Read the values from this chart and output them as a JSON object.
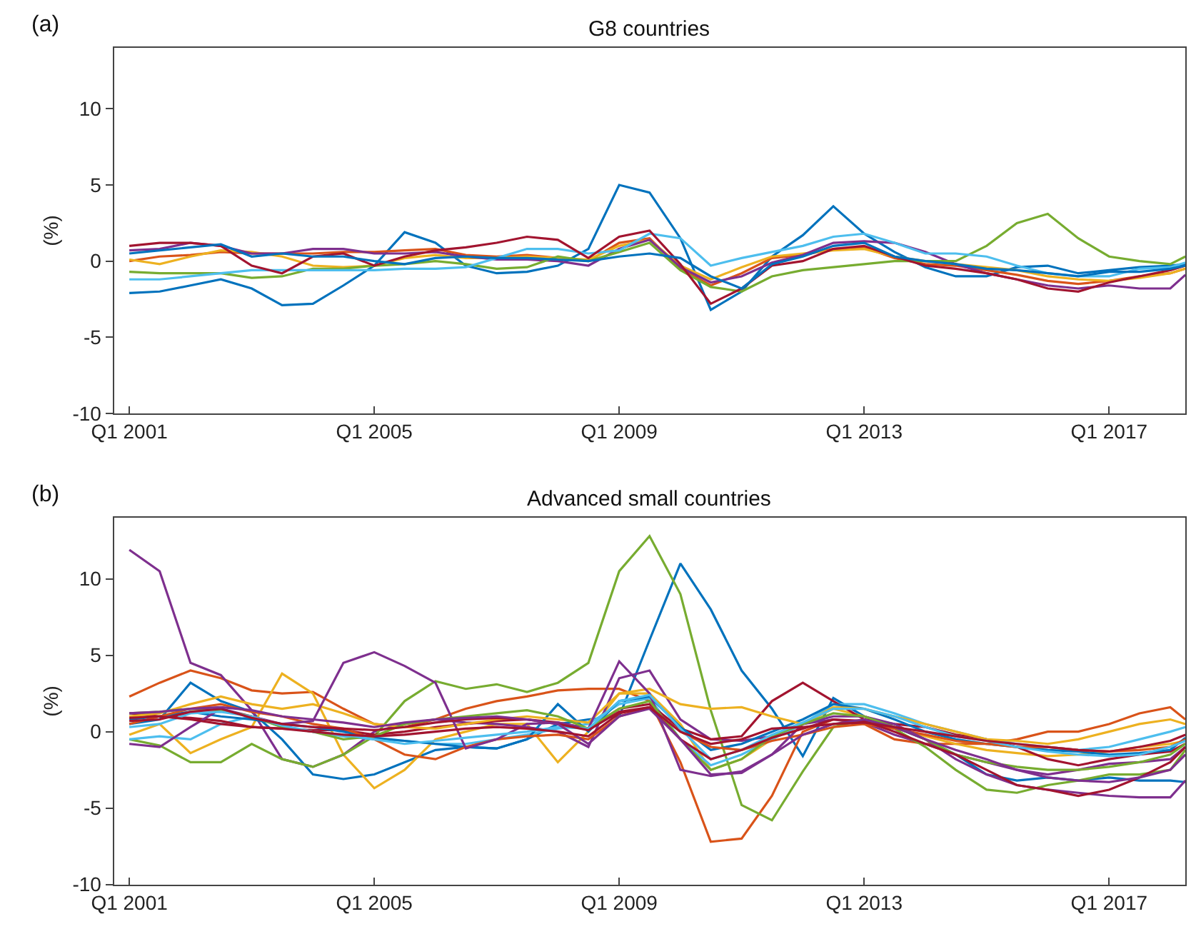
{
  "chart_data": [
    {
      "type": "line",
      "title": "G8 countries",
      "ylabel": "(%)",
      "annotations": [
        "(a)"
      ],
      "marker": "none",
      "line_style": "solid",
      "x": [
        "2001-01",
        "2001-07",
        "2002-01",
        "2002-07",
        "2003-01",
        "2003-07",
        "2004-01",
        "2004-07",
        "2005-01",
        "2005-07",
        "2006-01",
        "2006-07",
        "2007-01",
        "2007-07",
        "2008-01",
        "2008-07",
        "2009-01",
        "2009-07",
        "2010-01",
        "2010-07",
        "2011-01",
        "2011-07",
        "2012-01",
        "2012-07",
        "2013-01",
        "2013-07",
        "2014-01",
        "2014-07",
        "2015-01",
        "2015-07",
        "2016-01",
        "2016-07",
        "2017-01",
        "2017-07",
        "2018-01",
        "2018-04"
      ],
      "xlim": [
        "2000-10",
        "2018-04"
      ],
      "xticks": [
        {
          "value": "2001-01",
          "label": "Q1 2001"
        },
        {
          "value": "2005-01",
          "label": "Q1 2005"
        },
        {
          "value": "2009-01",
          "label": "Q1 2009"
        },
        {
          "value": "2013-01",
          "label": "Q1 2013"
        },
        {
          "value": "2017-01",
          "label": "Q1 2017"
        }
      ],
      "ylim": [
        -10,
        14
      ],
      "yticks": [
        -10,
        -5,
        0,
        5,
        10
      ],
      "series": [
        {
          "color": "#0072bd",
          "values": [
            -2.1,
            -2.0,
            -1.6,
            -1.2,
            -1.8,
            -2.9,
            -2.8,
            -1.6,
            -0.3,
            1.9,
            1.2,
            -0.3,
            -0.8,
            -0.7,
            -0.3,
            0.8,
            5.0,
            4.5,
            1.5,
            -3.2,
            -2.0,
            0.3,
            1.7,
            3.6,
            1.8,
            0.6,
            -0.4,
            -1.0,
            -1.0,
            -0.4,
            -0.3,
            -0.8,
            -0.6,
            -0.4,
            -0.3,
            -0.2
          ]
        },
        {
          "color": "#d95319",
          "values": [
            0.0,
            0.3,
            0.4,
            0.6,
            0.5,
            0.5,
            0.5,
            0.6,
            0.6,
            0.7,
            0.8,
            0.4,
            0.3,
            0.4,
            0.2,
            0.0,
            1.2,
            1.5,
            -0.5,
            -1.6,
            -0.8,
            0.2,
            0.4,
            0.8,
            0.9,
            0.2,
            -0.2,
            -0.3,
            -0.6,
            -0.9,
            -1.3,
            -1.5,
            -1.3,
            -1.0,
            -0.8,
            -0.5
          ]
        },
        {
          "color": "#edb120",
          "values": [
            0.1,
            -0.2,
            0.3,
            0.7,
            0.6,
            0.3,
            -0.3,
            -0.4,
            -0.3,
            0.2,
            0.4,
            0.2,
            0.2,
            0.3,
            0.2,
            0.1,
            1.0,
            1.4,
            -0.3,
            -1.2,
            -0.4,
            0.3,
            0.5,
            0.7,
            0.8,
            0.3,
            0.0,
            -0.2,
            -0.4,
            -0.6,
            -1.0,
            -1.2,
            -1.3,
            -1.1,
            -0.8,
            -0.5
          ]
        },
        {
          "color": "#7e2f8e",
          "values": [
            0.7,
            0.8,
            1.2,
            1.0,
            0.5,
            0.5,
            0.8,
            0.8,
            0.5,
            0.5,
            0.6,
            0.3,
            0.1,
            0.1,
            0.0,
            -0.3,
            0.8,
            1.4,
            -0.4,
            -1.4,
            -1.0,
            -0.1,
            0.4,
            1.2,
            1.3,
            1.2,
            0.6,
            -0.2,
            -0.8,
            -1.2,
            -1.6,
            -1.8,
            -1.6,
            -1.8,
            -1.8,
            -0.9
          ]
        },
        {
          "color": "#77ac30",
          "values": [
            -0.7,
            -0.8,
            -0.8,
            -0.8,
            -1.1,
            -1.0,
            -0.5,
            -0.5,
            -0.3,
            -0.2,
            0.0,
            -0.2,
            -0.5,
            -0.4,
            0.3,
            0.0,
            0.6,
            1.2,
            -0.6,
            -1.7,
            -2.0,
            -1.0,
            -0.6,
            -0.4,
            -0.2,
            0.0,
            0.0,
            0.0,
            1.0,
            2.5,
            3.1,
            1.5,
            0.3,
            0.0,
            -0.2,
            0.3
          ]
        },
        {
          "color": "#4dbeee",
          "values": [
            -1.2,
            -1.2,
            -1.0,
            -0.8,
            -0.6,
            -0.6,
            -0.6,
            -0.6,
            -0.6,
            -0.5,
            -0.5,
            -0.4,
            0.2,
            0.8,
            0.8,
            0.5,
            0.7,
            1.8,
            1.5,
            -0.3,
            0.2,
            0.6,
            1.0,
            1.6,
            1.8,
            1.2,
            0.5,
            0.5,
            0.3,
            -0.3,
            -0.8,
            -1.0,
            -1.0,
            -0.5,
            -0.4,
            -0.1
          ]
        },
        {
          "color": "#a2142f",
          "values": [
            1.0,
            1.2,
            1.2,
            1.0,
            -0.3,
            -0.8,
            0.3,
            0.5,
            -0.3,
            0.3,
            0.7,
            0.9,
            1.2,
            1.6,
            1.4,
            0.2,
            1.6,
            2.0,
            -0.2,
            -2.8,
            -1.8,
            -0.3,
            0.0,
            0.8,
            1.0,
            0.3,
            -0.3,
            -0.5,
            -0.8,
            -1.2,
            -1.8,
            -2.0,
            -1.4,
            -1.0,
            -0.6,
            -0.3
          ]
        },
        {
          "color": "#0072bd",
          "values": [
            0.5,
            0.7,
            0.9,
            1.1,
            0.3,
            0.5,
            0.3,
            0.3,
            0.0,
            -0.2,
            0.2,
            0.3,
            0.2,
            0.2,
            0.1,
            0.0,
            0.3,
            0.5,
            0.2,
            -1.0,
            -1.8,
            -0.2,
            0.3,
            1.0,
            1.2,
            0.3,
            0.0,
            -0.2,
            -0.5,
            -0.6,
            -0.8,
            -1.0,
            -0.7,
            -0.7,
            -0.5,
            -0.3
          ]
        }
      ]
    },
    {
      "type": "line",
      "title": "Advanced small countries",
      "ylabel": "(%)",
      "annotations": [
        "(b)"
      ],
      "marker": "none",
      "line_style": "solid",
      "x": [
        "2001-01",
        "2001-07",
        "2002-01",
        "2002-07",
        "2003-01",
        "2003-07",
        "2004-01",
        "2004-07",
        "2005-01",
        "2005-07",
        "2006-01",
        "2006-07",
        "2007-01",
        "2007-07",
        "2008-01",
        "2008-07",
        "2009-01",
        "2009-07",
        "2010-01",
        "2010-07",
        "2011-01",
        "2011-07",
        "2012-01",
        "2012-07",
        "2013-01",
        "2013-07",
        "2014-01",
        "2014-07",
        "2015-01",
        "2015-07",
        "2016-01",
        "2016-07",
        "2017-01",
        "2017-07",
        "2018-01",
        "2018-04"
      ],
      "xlim": [
        "2000-10",
        "2018-04"
      ],
      "xticks": [
        {
          "value": "2001-01",
          "label": "Q1 2001"
        },
        {
          "value": "2005-01",
          "label": "Q1 2005"
        },
        {
          "value": "2009-01",
          "label": "Q1 2009"
        },
        {
          "value": "2013-01",
          "label": "Q1 2013"
        },
        {
          "value": "2017-01",
          "label": "Q1 2017"
        }
      ],
      "ylim": [
        -10,
        14
      ],
      "yticks": [
        -10,
        -5,
        0,
        5,
        10
      ],
      "series": [
        {
          "color": "#0072bd",
          "values": [
            0.5,
            0.8,
            3.2,
            2.0,
            1.3,
            -0.5,
            -2.8,
            -3.1,
            -2.8,
            -2.0,
            -1.2,
            -1.0,
            -1.1,
            -0.5,
            0.5,
            0.8,
            1.0,
            6.0,
            11.0,
            8.0,
            4.0,
            1.5,
            -1.6,
            2.2,
            1.0,
            0.3,
            -0.5,
            -1.5,
            -2.8,
            -3.2,
            -3.0,
            -3.2,
            -3.0,
            -3.2,
            -3.2,
            -3.3
          ]
        },
        {
          "color": "#d95319",
          "values": [
            2.3,
            3.2,
            4.0,
            3.5,
            2.7,
            2.5,
            2.6,
            1.5,
            0.5,
            0.3,
            0.8,
            1.5,
            2.0,
            2.3,
            2.7,
            2.8,
            2.8,
            2.0,
            -2.0,
            -7.2,
            -7.0,
            -4.2,
            0.0,
            0.8,
            0.5,
            -0.5,
            -0.8,
            -0.8,
            -0.8,
            -0.5,
            0.0,
            0.0,
            0.5,
            1.2,
            1.6,
            0.8
          ]
        },
        {
          "color": "#edb120",
          "values": [
            -0.2,
            0.5,
            -1.4,
            -0.5,
            0.3,
            3.8,
            2.5,
            -1.5,
            -3.7,
            -2.5,
            -0.5,
            0.0,
            0.5,
            0.5,
            -2.0,
            0.0,
            2.5,
            2.5,
            0.5,
            -2.5,
            -1.8,
            -0.5,
            0.5,
            1.5,
            1.0,
            0.3,
            -0.3,
            -0.8,
            -1.2,
            -1.4,
            -1.6,
            -1.5,
            -1.3,
            -1.0,
            -0.8,
            -0.6
          ]
        },
        {
          "color": "#7e2f8e",
          "values": [
            11.9,
            10.5,
            4.5,
            3.7,
            1.4,
            -1.8,
            -2.3,
            -1.5,
            0.0,
            0.5,
            0.8,
            0.6,
            0.5,
            0.3,
            0.0,
            -1.0,
            3.5,
            4.0,
            0.8,
            -0.5,
            -0.6,
            -0.3,
            0.5,
            0.8,
            0.6,
            -0.2,
            -0.8,
            -1.5,
            -2.0,
            -2.5,
            -2.8,
            -2.5,
            -2.1,
            -2.0,
            -1.8,
            -1.0
          ]
        },
        {
          "color": "#77ac30",
          "values": [
            -0.5,
            -0.9,
            -2.0,
            -2.0,
            -0.8,
            -1.8,
            -2.3,
            -1.5,
            -0.3,
            2.0,
            3.3,
            2.8,
            3.1,
            2.6,
            3.2,
            4.5,
            10.5,
            12.8,
            9.0,
            1.4,
            -4.8,
            -5.8,
            -2.6,
            0.3,
            0.8,
            0.2,
            -1.0,
            -2.5,
            -3.8,
            -4.0,
            -3.5,
            -3.2,
            -2.8,
            -2.8,
            -2.5,
            -1.2
          ]
        },
        {
          "color": "#4dbeee",
          "values": [
            -0.5,
            -0.3,
            -0.5,
            0.5,
            1.0,
            0.3,
            0.0,
            -0.3,
            -0.5,
            -0.6,
            -0.8,
            -0.8,
            -0.5,
            -0.2,
            0.2,
            0.5,
            1.8,
            2.2,
            -0.5,
            -2.2,
            -1.5,
            -0.5,
            0.5,
            1.8,
            1.8,
            1.2,
            0.5,
            0.0,
            -0.5,
            -0.8,
            -1.0,
            -1.2,
            -1.0,
            -0.5,
            0.0,
            0.3
          ]
        },
        {
          "color": "#a2142f",
          "values": [
            1.2,
            1.0,
            0.9,
            0.7,
            0.3,
            0.2,
            0.1,
            0.1,
            -0.2,
            0.0,
            0.3,
            0.5,
            0.7,
            0.8,
            0.6,
            0.2,
            1.5,
            1.8,
            0.2,
            -0.5,
            -0.3,
            2.0,
            3.2,
            2.0,
            0.8,
            0.5,
            0.3,
            -0.2,
            -0.5,
            -1.0,
            -1.8,
            -2.2,
            -1.8,
            -1.5,
            -1.3,
            -0.8
          ]
        },
        {
          "color": "#0072bd",
          "values": [
            0.8,
            1.0,
            1.3,
            1.0,
            0.8,
            0.5,
            0.3,
            0.0,
            -0.4,
            -0.6,
            -0.8,
            -1.0,
            -1.1,
            -0.5,
            1.8,
            0.0,
            2.0,
            2.3,
            0.3,
            -1.2,
            -0.8,
            0.0,
            0.8,
            1.8,
            1.5,
            0.8,
            0.0,
            -0.5,
            -0.8,
            -1.0,
            -1.2,
            -1.3,
            -1.5,
            -1.4,
            -1.2,
            -0.4
          ]
        },
        {
          "color": "#d95319",
          "values": [
            0.5,
            1.0,
            1.5,
            1.8,
            1.3,
            1.0,
            0.5,
            0.2,
            -0.5,
            -1.5,
            -1.8,
            -1.0,
            -0.5,
            -0.3,
            -0.2,
            -0.5,
            1.0,
            1.6,
            0.0,
            -1.0,
            -1.2,
            -0.6,
            -0.2,
            0.3,
            0.5,
            0.2,
            -0.2,
            -0.6,
            -0.8,
            -1.0,
            -1.0,
            -1.2,
            -1.3,
            -1.2,
            -1.0,
            -0.5
          ]
        },
        {
          "color": "#edb120",
          "values": [
            1.0,
            1.2,
            1.8,
            2.3,
            1.8,
            1.5,
            1.8,
            1.2,
            0.5,
            0.3,
            0.2,
            0.5,
            0.8,
            1.0,
            0.8,
            0.6,
            2.5,
            2.8,
            1.8,
            1.5,
            1.6,
            1.0,
            0.5,
            1.6,
            1.5,
            1.0,
            0.5,
            0.0,
            -0.5,
            -0.6,
            -0.8,
            -0.5,
            0.0,
            0.5,
            0.8,
            0.5
          ]
        },
        {
          "color": "#7e2f8e",
          "values": [
            -0.8,
            -1.0,
            0.3,
            1.5,
            1.0,
            0.5,
            0.7,
            4.5,
            5.2,
            4.3,
            3.2,
            -1.1,
            -0.5,
            0.5,
            0.6,
            0.2,
            4.6,
            2.5,
            -2.5,
            -2.9,
            -2.6,
            -1.5,
            0.5,
            1.0,
            1.0,
            0.5,
            -0.5,
            -1.8,
            -2.8,
            -3.5,
            -3.8,
            -4.0,
            -4.2,
            -4.3,
            -4.3,
            -3.2
          ]
        },
        {
          "color": "#77ac30",
          "values": [
            1.2,
            1.3,
            1.5,
            1.4,
            1.0,
            0.3,
            0.0,
            -0.5,
            -0.3,
            0.5,
            0.8,
            1.0,
            1.2,
            1.4,
            1.0,
            0.2,
            1.5,
            2.0,
            -0.5,
            -2.5,
            -1.8,
            -0.3,
            0.5,
            1.2,
            1.0,
            0.3,
            -0.5,
            -1.5,
            -2.0,
            -2.3,
            -2.5,
            -2.5,
            -2.3,
            -2.0,
            -1.5,
            -0.8
          ]
        },
        {
          "color": "#4dbeee",
          "values": [
            0.3,
            0.5,
            1.2,
            1.3,
            1.0,
            0.4,
            0.0,
            -0.2,
            -0.5,
            -0.8,
            -0.6,
            -0.4,
            -0.2,
            0.0,
            0.3,
            0.2,
            2.0,
            2.4,
            0.2,
            -1.8,
            -1.2,
            -0.2,
            0.6,
            1.5,
            1.5,
            1.0,
            0.3,
            -0.3,
            -0.6,
            -1.0,
            -1.3,
            -1.5,
            -1.6,
            -1.5,
            -1.0,
            -0.6
          ]
        },
        {
          "color": "#a2142f",
          "values": [
            0.7,
            0.8,
            1.3,
            1.5,
            0.9,
            0.5,
            0.3,
            0.2,
            0.1,
            0.3,
            0.6,
            0.8,
            0.9,
            0.8,
            0.5,
            0.1,
            1.3,
            1.6,
            -0.5,
            -1.8,
            -1.2,
            -0.4,
            0.2,
            0.8,
            0.7,
            0.0,
            -0.8,
            -1.5,
            -2.5,
            -3.5,
            -3.8,
            -4.2,
            -3.8,
            -3.0,
            -2.0,
            -1.0
          ]
        },
        {
          "color": "#7e2f8e",
          "values": [
            1.2,
            1.3,
            1.5,
            1.6,
            1.4,
            1.0,
            0.8,
            0.6,
            0.3,
            0.6,
            0.8,
            0.9,
            1.0,
            0.8,
            0.5,
            -0.8,
            1.0,
            1.5,
            -0.5,
            -2.8,
            -2.7,
            -1.5,
            -0.2,
            0.5,
            0.8,
            0.3,
            -0.5,
            -1.2,
            -1.8,
            -2.5,
            -3.0,
            -3.2,
            -3.3,
            -3.0,
            -2.5,
            -1.5
          ]
        },
        {
          "color": "#a2142f",
          "values": [
            0.9,
            1.0,
            0.8,
            0.5,
            0.3,
            0.2,
            0.0,
            -0.2,
            -0.3,
            -0.2,
            0.0,
            0.2,
            0.3,
            0.2,
            0.0,
            -0.3,
            1.2,
            1.6,
            0.0,
            -0.8,
            -0.5,
            0.2,
            0.3,
            0.5,
            0.6,
            0.3,
            0.0,
            -0.3,
            -0.6,
            -0.8,
            -1.0,
            -1.2,
            -1.3,
            -1.0,
            -0.6,
            -0.2
          ]
        }
      ]
    }
  ]
}
